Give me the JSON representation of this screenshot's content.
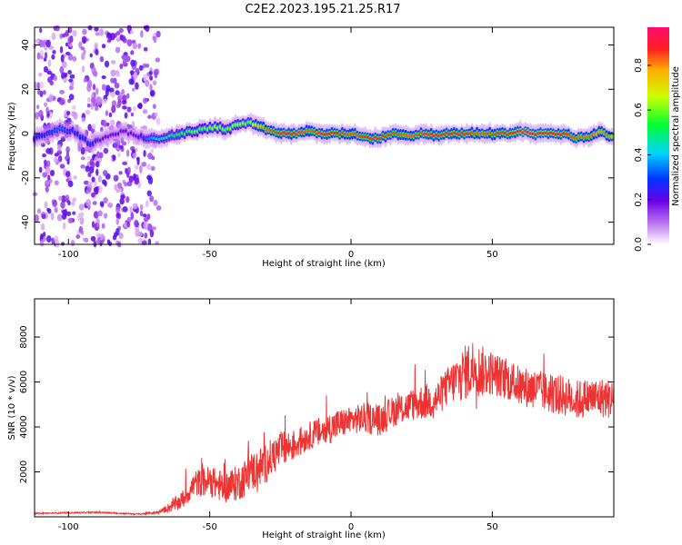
{
  "title": "C2E2.2023.195.21.25.R17",
  "chart_data": [
    {
      "type": "heatmap",
      "title": "C2E2.2023.195.21.25.R17",
      "xlabel": "Height of straight line (km)",
      "ylabel": "Frequency (Hz)",
      "xlim": [
        -112,
        93
      ],
      "ylim": [
        -50,
        48
      ],
      "x_ticks": [
        -100,
        -50,
        0,
        50
      ],
      "y_ticks": [
        -40,
        -20,
        0,
        20,
        40
      ],
      "colorbar": {
        "label": "Normalized spectral amplitude",
        "range": [
          0,
          0.97
        ],
        "ticks": [
          0.0,
          0.2,
          0.4,
          0.6,
          0.8
        ]
      },
      "ridge": {
        "x": [
          -112,
          -108,
          -103,
          -98,
          -95,
          -92,
          -88,
          -84,
          -80,
          -76,
          -72,
          -68,
          -64,
          -60,
          -56,
          -52,
          -48,
          -44,
          -40,
          -36,
          -33,
          -30,
          -25,
          -20,
          -15,
          -10,
          -5,
          0,
          5,
          10,
          15,
          20,
          25,
          30,
          35,
          40,
          45,
          50,
          55,
          60,
          65,
          70,
          75,
          80,
          85,
          88,
          90,
          93
        ],
        "freq": [
          -2,
          0,
          2,
          1,
          -2,
          -5,
          -2,
          0,
          1,
          -1,
          -2,
          -3,
          -1,
          0,
          1,
          2,
          3,
          2,
          4,
          5,
          3,
          2,
          0,
          0,
          1,
          0,
          0,
          0,
          -2,
          -2,
          0,
          -1,
          0,
          -1,
          0,
          0,
          0,
          0,
          0,
          1,
          0,
          0,
          0,
          -2,
          -1,
          1,
          0,
          -2
        ],
        "amplitude": [
          0.3,
          0.3,
          0.35,
          0.3,
          0.3,
          0.3,
          0.2,
          0.2,
          0.2,
          0.2,
          0.35,
          0.45,
          0.5,
          0.55,
          0.6,
          0.6,
          0.65,
          0.6,
          0.65,
          0.6,
          0.75,
          0.85,
          0.9,
          0.9,
          0.85,
          0.9,
          0.9,
          0.85,
          0.9,
          0.9,
          0.88,
          0.85,
          0.88,
          0.9,
          0.9,
          0.9,
          0.85,
          0.88,
          0.9,
          0.95,
          0.95,
          0.92,
          0.9,
          0.85,
          0.85,
          0.8,
          0.85,
          0.8
        ]
      },
      "noise_region_x": [
        -112,
        -68
      ]
    },
    {
      "type": "line",
      "xlabel": "Height of straight line (km)",
      "ylabel": "SNR (10 * v/v)",
      "xlim": [
        -112,
        93
      ],
      "ylim": [
        0,
        9700
      ],
      "x_ticks": [
        -100,
        -50,
        0,
        50
      ],
      "y_ticks": [
        2000,
        4000,
        6000,
        8000
      ],
      "color": "#ee3333",
      "trend": {
        "x": [
          -112,
          -90,
          -75,
          -68,
          -60,
          -55,
          -50,
          -45,
          -40,
          -35,
          -30,
          -25,
          -20,
          -15,
          -10,
          -5,
          0,
          5,
          10,
          15,
          20,
          25,
          30,
          35,
          40,
          43,
          45,
          50,
          55,
          60,
          65,
          70,
          75,
          80,
          85,
          90,
          93
        ],
        "snr": [
          150,
          200,
          120,
          200,
          700,
          1500,
          1600,
          1300,
          1500,
          2000,
          2400,
          3000,
          3200,
          3600,
          3800,
          4100,
          4300,
          4400,
          4300,
          4700,
          4900,
          5100,
          5200,
          5900,
          6400,
          6600,
          6500,
          6400,
          6100,
          5800,
          5700,
          5500,
          5400,
          5200,
          5300,
          5300,
          5200
        ]
      },
      "noise_amplitude": [
        30,
        30,
        30,
        60,
        400,
        600,
        700,
        700,
        800,
        900,
        900,
        800,
        700,
        600,
        700,
        700,
        600,
        700,
        700,
        700,
        700,
        800,
        800,
        900,
        1200,
        1400,
        1200,
        1000,
        900,
        900,
        900,
        900,
        900,
        900,
        900,
        900,
        900
      ]
    }
  ]
}
